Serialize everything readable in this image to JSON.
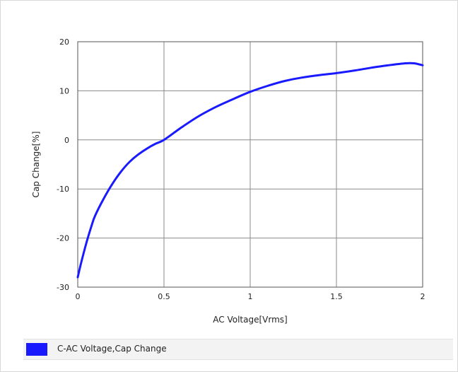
{
  "chart_data": {
    "type": "line",
    "title": "",
    "xlabel": "AC Voltage[Vrms]",
    "ylabel": "Cap Change[%]",
    "xlim": [
      0,
      2
    ],
    "ylim": [
      -30,
      20
    ],
    "x_ticks": [
      "0",
      "0.5",
      "1",
      "1.5",
      "2"
    ],
    "y_ticks": [
      "20",
      "10",
      "0",
      "-10",
      "-20",
      "-30"
    ],
    "grid": true,
    "legend_position": "bottom",
    "series": [
      {
        "name": "C-AC Voltage,Cap Change",
        "color": "#1a1aff",
        "x": [
          0.0,
          0.02,
          0.05,
          0.08,
          0.1,
          0.15,
          0.2,
          0.25,
          0.3,
          0.35,
          0.4,
          0.45,
          0.5,
          0.6,
          0.7,
          0.8,
          0.9,
          1.0,
          1.1,
          1.2,
          1.3,
          1.4,
          1.5,
          1.6,
          1.7,
          1.8,
          1.9,
          1.95,
          2.0
        ],
        "y": [
          -28.0,
          -25.0,
          -21.0,
          -17.5,
          -15.5,
          -12.0,
          -9.0,
          -6.5,
          -4.5,
          -3.0,
          -1.8,
          -0.8,
          0.0,
          2.5,
          4.8,
          6.7,
          8.3,
          9.8,
          11.0,
          12.0,
          12.7,
          13.2,
          13.6,
          14.1,
          14.7,
          15.2,
          15.6,
          15.6,
          15.2
        ]
      }
    ]
  }
}
